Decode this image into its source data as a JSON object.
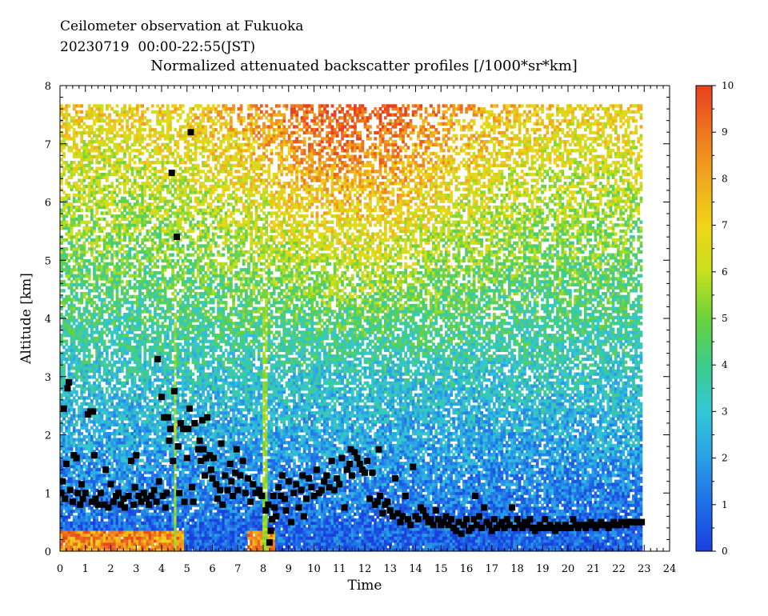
{
  "header": {
    "line1": "Ceilometer observation at Fukuoka",
    "line2": "20230719  00:00-22:55(JST)"
  },
  "chart_data": {
    "type": "heatmap",
    "title": "Normalized attenuated backscatter profiles [/1000*sr*km]",
    "xlabel": "Time",
    "ylabel": "Altitude [km]",
    "xlim": [
      0,
      24
    ],
    "ylim": [
      0,
      8
    ],
    "x_ticks": [
      "0",
      "1",
      "2",
      "3",
      "4",
      "5",
      "6",
      "7",
      "8",
      "9",
      "10",
      "11",
      "12",
      "13",
      "14",
      "15",
      "16",
      "17",
      "18",
      "19",
      "20",
      "21",
      "22",
      "23",
      "24"
    ],
    "y_ticks": [
      "0",
      "1",
      "2",
      "3",
      "4",
      "5",
      "6",
      "7",
      "8"
    ],
    "data_extent": {
      "time": [
        0,
        22.92
      ],
      "altitude": [
        0,
        7.68
      ]
    },
    "colorbar": {
      "min": 0,
      "max": 10,
      "ticks": [
        "0",
        "1",
        "2",
        "3",
        "4",
        "5",
        "6",
        "7",
        "8",
        "9",
        "10"
      ],
      "colors": [
        "#1a3fdc",
        "#1f6ee8",
        "#2a9fe6",
        "#33c7d6",
        "#3ccc8c",
        "#6ad23a",
        "#c8e01e",
        "#f0d418",
        "#f0a81e",
        "#ee7620",
        "#e8401e"
      ]
    },
    "cloud_base_points": [
      {
        "t": 0.05,
        "h": 1.0
      },
      {
        "t": 0.1,
        "h": 1.2
      },
      {
        "t": 0.15,
        "h": 2.45
      },
      {
        "t": 0.2,
        "h": 0.9
      },
      {
        "t": 0.25,
        "h": 1.5
      },
      {
        "t": 0.3,
        "h": 2.8
      },
      {
        "t": 0.35,
        "h": 2.9
      },
      {
        "t": 0.4,
        "h": 1.05
      },
      {
        "t": 0.5,
        "h": 0.85
      },
      {
        "t": 0.55,
        "h": 1.65
      },
      {
        "t": 0.65,
        "h": 1.6
      },
      {
        "t": 0.7,
        "h": 1.0
      },
      {
        "t": 0.8,
        "h": 0.8
      },
      {
        "t": 0.85,
        "h": 1.15
      },
      {
        "t": 0.9,
        "h": 0.9
      },
      {
        "t": 1.0,
        "h": 1.0
      },
      {
        "t": 1.1,
        "h": 2.35
      },
      {
        "t": 1.2,
        "h": 2.4
      },
      {
        "t": 1.25,
        "h": 0.85
      },
      {
        "t": 1.3,
        "h": 2.4
      },
      {
        "t": 1.35,
        "h": 1.65
      },
      {
        "t": 1.4,
        "h": 0.9
      },
      {
        "t": 1.5,
        "h": 0.8
      },
      {
        "t": 1.6,
        "h": 1.0
      },
      {
        "t": 1.75,
        "h": 0.8
      },
      {
        "t": 1.8,
        "h": 1.4
      },
      {
        "t": 1.9,
        "h": 0.75
      },
      {
        "t": 2.0,
        "h": 1.15
      },
      {
        "t": 2.1,
        "h": 0.85
      },
      {
        "t": 2.2,
        "h": 0.95
      },
      {
        "t": 2.3,
        "h": 1.0
      },
      {
        "t": 2.4,
        "h": 0.8
      },
      {
        "t": 2.5,
        "h": 0.9
      },
      {
        "t": 2.55,
        "h": 0.75
      },
      {
        "t": 2.7,
        "h": 0.95
      },
      {
        "t": 2.8,
        "h": 1.55
      },
      {
        "t": 2.9,
        "h": 0.8
      },
      {
        "t": 2.95,
        "h": 1.1
      },
      {
        "t": 3.0,
        "h": 1.65
      },
      {
        "t": 3.1,
        "h": 0.95
      },
      {
        "t": 3.2,
        "h": 0.85
      },
      {
        "t": 3.3,
        "h": 1.0
      },
      {
        "t": 3.4,
        "h": 0.9
      },
      {
        "t": 3.5,
        "h": 0.8
      },
      {
        "t": 3.6,
        "h": 0.95
      },
      {
        "t": 3.7,
        "h": 1.05
      },
      {
        "t": 3.8,
        "h": 0.85
      },
      {
        "t": 3.85,
        "h": 3.3
      },
      {
        "t": 3.9,
        "h": 1.2
      },
      {
        "t": 4.0,
        "h": 2.65
      },
      {
        "t": 4.05,
        "h": 0.95
      },
      {
        "t": 4.1,
        "h": 2.3
      },
      {
        "t": 4.15,
        "h": 0.75
      },
      {
        "t": 4.2,
        "h": 1.0
      },
      {
        "t": 4.25,
        "h": 2.3
      },
      {
        "t": 4.3,
        "h": 1.9
      },
      {
        "t": 4.35,
        "h": 2.1
      },
      {
        "t": 4.4,
        "h": 6.5
      },
      {
        "t": 4.45,
        "h": 1.55
      },
      {
        "t": 4.5,
        "h": 2.75
      },
      {
        "t": 4.6,
        "h": 5.4
      },
      {
        "t": 4.65,
        "h": 1.8
      },
      {
        "t": 4.7,
        "h": 1.0
      },
      {
        "t": 4.75,
        "h": 2.2
      },
      {
        "t": 4.85,
        "h": 2.1
      },
      {
        "t": 4.9,
        "h": 0.85
      },
      {
        "t": 5.0,
        "h": 1.6
      },
      {
        "t": 5.05,
        "h": 2.1
      },
      {
        "t": 5.1,
        "h": 2.45
      },
      {
        "t": 5.15,
        "h": 7.2
      },
      {
        "t": 5.2,
        "h": 1.1
      },
      {
        "t": 5.25,
        "h": 0.85
      },
      {
        "t": 5.3,
        "h": 2.2
      },
      {
        "t": 5.45,
        "h": 1.75
      },
      {
        "t": 5.5,
        "h": 1.9
      },
      {
        "t": 5.55,
        "h": 1.55
      },
      {
        "t": 5.6,
        "h": 2.25
      },
      {
        "t": 5.65,
        "h": 1.75
      },
      {
        "t": 5.7,
        "h": 1.3
      },
      {
        "t": 5.75,
        "h": 1.6
      },
      {
        "t": 5.8,
        "h": 2.3
      },
      {
        "t": 5.9,
        "h": 1.65
      },
      {
        "t": 5.95,
        "h": 1.4
      },
      {
        "t": 6.0,
        "h": 1.25
      },
      {
        "t": 6.05,
        "h": 1.6
      },
      {
        "t": 6.15,
        "h": 1.15
      },
      {
        "t": 6.2,
        "h": 0.9
      },
      {
        "t": 6.3,
        "h": 1.05
      },
      {
        "t": 6.35,
        "h": 1.85
      },
      {
        "t": 6.4,
        "h": 0.8
      },
      {
        "t": 6.5,
        "h": 1.3
      },
      {
        "t": 6.6,
        "h": 1.05
      },
      {
        "t": 6.7,
        "h": 1.5
      },
      {
        "t": 6.75,
        "h": 1.2
      },
      {
        "t": 6.8,
        "h": 0.95
      },
      {
        "t": 6.9,
        "h": 1.35
      },
      {
        "t": 6.95,
        "h": 1.75
      },
      {
        "t": 7.0,
        "h": 1.05
      },
      {
        "t": 7.1,
        "h": 1.3
      },
      {
        "t": 7.2,
        "h": 1.55
      },
      {
        "t": 7.3,
        "h": 1.0
      },
      {
        "t": 7.4,
        "h": 1.25
      },
      {
        "t": 7.5,
        "h": 0.85
      },
      {
        "t": 7.6,
        "h": 1.15
      },
      {
        "t": 7.7,
        "h": 1.0
      },
      {
        "t": 7.85,
        "h": 1.05
      },
      {
        "t": 7.95,
        "h": 0.95
      },
      {
        "t": 8.1,
        "h": 0.7
      },
      {
        "t": 8.2,
        "h": 0.8
      },
      {
        "t": 8.25,
        "h": 0.15
      },
      {
        "t": 8.3,
        "h": 0.35
      },
      {
        "t": 8.35,
        "h": 0.55
      },
      {
        "t": 8.4,
        "h": 0.95
      },
      {
        "t": 8.45,
        "h": 0.75
      },
      {
        "t": 8.5,
        "h": 0.6
      },
      {
        "t": 8.6,
        "h": 1.1
      },
      {
        "t": 8.7,
        "h": 0.95
      },
      {
        "t": 8.75,
        "h": 1.3
      },
      {
        "t": 8.85,
        "h": 0.9
      },
      {
        "t": 8.9,
        "h": 0.7
      },
      {
        "t": 9.0,
        "h": 1.2
      },
      {
        "t": 9.1,
        "h": 0.5
      },
      {
        "t": 9.2,
        "h": 1.0
      },
      {
        "t": 9.3,
        "h": 1.15
      },
      {
        "t": 9.4,
        "h": 0.75
      },
      {
        "t": 9.5,
        "h": 1.05
      },
      {
        "t": 9.55,
        "h": 1.3
      },
      {
        "t": 9.6,
        "h": 0.6
      },
      {
        "t": 9.7,
        "h": 0.9
      },
      {
        "t": 9.8,
        "h": 1.25
      },
      {
        "t": 9.9,
        "h": 1.1
      },
      {
        "t": 10.0,
        "h": 0.95
      },
      {
        "t": 10.1,
        "h": 1.4
      },
      {
        "t": 10.2,
        "h": 1.0
      },
      {
        "t": 10.3,
        "h": 1.05
      },
      {
        "t": 10.4,
        "h": 1.2
      },
      {
        "t": 10.5,
        "h": 1.3
      },
      {
        "t": 10.6,
        "h": 1.1
      },
      {
        "t": 10.7,
        "h": 1.55
      },
      {
        "t": 10.8,
        "h": 1.05
      },
      {
        "t": 10.9,
        "h": 1.25
      },
      {
        "t": 11.0,
        "h": 1.15
      },
      {
        "t": 11.1,
        "h": 1.6
      },
      {
        "t": 11.2,
        "h": 0.75
      },
      {
        "t": 11.3,
        "h": 1.4
      },
      {
        "t": 11.4,
        "h": 1.5
      },
      {
        "t": 11.45,
        "h": 1.75
      },
      {
        "t": 11.5,
        "h": 1.3
      },
      {
        "t": 11.6,
        "h": 1.7
      },
      {
        "t": 11.7,
        "h": 1.6
      },
      {
        "t": 11.8,
        "h": 1.5
      },
      {
        "t": 11.9,
        "h": 1.4
      },
      {
        "t": 12.0,
        "h": 1.35
      },
      {
        "t": 12.1,
        "h": 1.55
      },
      {
        "t": 12.2,
        "h": 0.9
      },
      {
        "t": 12.3,
        "h": 1.35
      },
      {
        "t": 12.4,
        "h": 0.8
      },
      {
        "t": 12.5,
        "h": 0.85
      },
      {
        "t": 12.55,
        "h": 1.75
      },
      {
        "t": 12.6,
        "h": 0.95
      },
      {
        "t": 12.7,
        "h": 0.65
      },
      {
        "t": 12.8,
        "h": 0.8
      },
      {
        "t": 12.9,
        "h": 0.85
      },
      {
        "t": 13.0,
        "h": 0.7
      },
      {
        "t": 13.1,
        "h": 0.6
      },
      {
        "t": 13.2,
        "h": 1.25
      },
      {
        "t": 13.3,
        "h": 0.65
      },
      {
        "t": 13.4,
        "h": 0.5
      },
      {
        "t": 13.5,
        "h": 0.6
      },
      {
        "t": 13.6,
        "h": 0.95
      },
      {
        "t": 13.7,
        "h": 0.55
      },
      {
        "t": 13.8,
        "h": 0.45
      },
      {
        "t": 13.9,
        "h": 1.45
      },
      {
        "t": 14.0,
        "h": 0.6
      },
      {
        "t": 14.1,
        "h": 0.55
      },
      {
        "t": 14.2,
        "h": 0.75
      },
      {
        "t": 14.3,
        "h": 0.7
      },
      {
        "t": 14.4,
        "h": 0.6
      },
      {
        "t": 14.5,
        "h": 0.5
      },
      {
        "t": 14.6,
        "h": 0.55
      },
      {
        "t": 14.7,
        "h": 0.45
      },
      {
        "t": 14.8,
        "h": 0.7
      },
      {
        "t": 14.9,
        "h": 0.55
      },
      {
        "t": 15.0,
        "h": 0.45
      },
      {
        "t": 15.1,
        "h": 0.5
      },
      {
        "t": 15.2,
        "h": 0.6
      },
      {
        "t": 15.3,
        "h": 0.45
      },
      {
        "t": 15.4,
        "h": 0.55
      },
      {
        "t": 15.5,
        "h": 0.4
      },
      {
        "t": 15.6,
        "h": 0.35
      },
      {
        "t": 15.7,
        "h": 0.5
      },
      {
        "t": 15.8,
        "h": 0.3
      },
      {
        "t": 15.9,
        "h": 0.45
      },
      {
        "t": 16.0,
        "h": 0.55
      },
      {
        "t": 16.1,
        "h": 0.35
      },
      {
        "t": 16.2,
        "h": 0.4
      },
      {
        "t": 16.3,
        "h": 0.55
      },
      {
        "t": 16.35,
        "h": 0.95
      },
      {
        "t": 16.4,
        "h": 0.45
      },
      {
        "t": 16.5,
        "h": 0.6
      },
      {
        "t": 16.6,
        "h": 0.4
      },
      {
        "t": 16.7,
        "h": 0.75
      },
      {
        "t": 16.8,
        "h": 0.5
      },
      {
        "t": 16.9,
        "h": 0.45
      },
      {
        "t": 17.0,
        "h": 0.35
      },
      {
        "t": 17.1,
        "h": 0.55
      },
      {
        "t": 17.2,
        "h": 0.4
      },
      {
        "t": 17.3,
        "h": 0.45
      },
      {
        "t": 17.4,
        "h": 0.5
      },
      {
        "t": 17.5,
        "h": 0.4
      },
      {
        "t": 17.6,
        "h": 0.55
      },
      {
        "t": 17.7,
        "h": 0.45
      },
      {
        "t": 17.8,
        "h": 0.75
      },
      {
        "t": 17.9,
        "h": 0.4
      },
      {
        "t": 18.0,
        "h": 0.55
      },
      {
        "t": 18.1,
        "h": 0.45
      },
      {
        "t": 18.2,
        "h": 0.4
      },
      {
        "t": 18.3,
        "h": 0.5
      },
      {
        "t": 18.4,
        "h": 0.45
      },
      {
        "t": 18.5,
        "h": 0.55
      },
      {
        "t": 18.6,
        "h": 0.4
      },
      {
        "t": 18.7,
        "h": 0.35
      },
      {
        "t": 18.8,
        "h": 0.4
      },
      {
        "t": 18.9,
        "h": 0.45
      },
      {
        "t": 19.0,
        "h": 0.4
      },
      {
        "t": 19.1,
        "h": 0.55
      },
      {
        "t": 19.2,
        "h": 0.4
      },
      {
        "t": 19.3,
        "h": 0.45
      },
      {
        "t": 19.4,
        "h": 0.4
      },
      {
        "t": 19.5,
        "h": 0.35
      },
      {
        "t": 19.6,
        "h": 0.45
      },
      {
        "t": 19.7,
        "h": 0.4
      },
      {
        "t": 19.8,
        "h": 0.4
      },
      {
        "t": 19.9,
        "h": 0.45
      },
      {
        "t": 20.0,
        "h": 0.4
      },
      {
        "t": 20.1,
        "h": 0.4
      },
      {
        "t": 20.2,
        "h": 0.55
      },
      {
        "t": 20.3,
        "h": 0.45
      },
      {
        "t": 20.4,
        "h": 0.4
      },
      {
        "t": 20.5,
        "h": 0.45
      },
      {
        "t": 20.6,
        "h": 0.45
      },
      {
        "t": 20.7,
        "h": 0.4
      },
      {
        "t": 20.8,
        "h": 0.45
      },
      {
        "t": 20.9,
        "h": 0.5
      },
      {
        "t": 21.0,
        "h": 0.45
      },
      {
        "t": 21.1,
        "h": 0.4
      },
      {
        "t": 21.2,
        "h": 0.45
      },
      {
        "t": 21.3,
        "h": 0.5
      },
      {
        "t": 21.4,
        "h": 0.45
      },
      {
        "t": 21.5,
        "h": 0.45
      },
      {
        "t": 21.6,
        "h": 0.4
      },
      {
        "t": 21.7,
        "h": 0.45
      },
      {
        "t": 21.8,
        "h": 0.5
      },
      {
        "t": 21.9,
        "h": 0.45
      },
      {
        "t": 22.0,
        "h": 0.45
      },
      {
        "t": 22.1,
        "h": 0.5
      },
      {
        "t": 22.2,
        "h": 0.5
      },
      {
        "t": 22.3,
        "h": 0.45
      },
      {
        "t": 22.4,
        "h": 0.5
      },
      {
        "t": 22.5,
        "h": 0.5
      },
      {
        "t": 22.6,
        "h": 0.5
      },
      {
        "t": 22.7,
        "h": 0.5
      },
      {
        "t": 22.8,
        "h": 0.5
      },
      {
        "t": 22.9,
        "h": 0.5
      }
    ]
  }
}
